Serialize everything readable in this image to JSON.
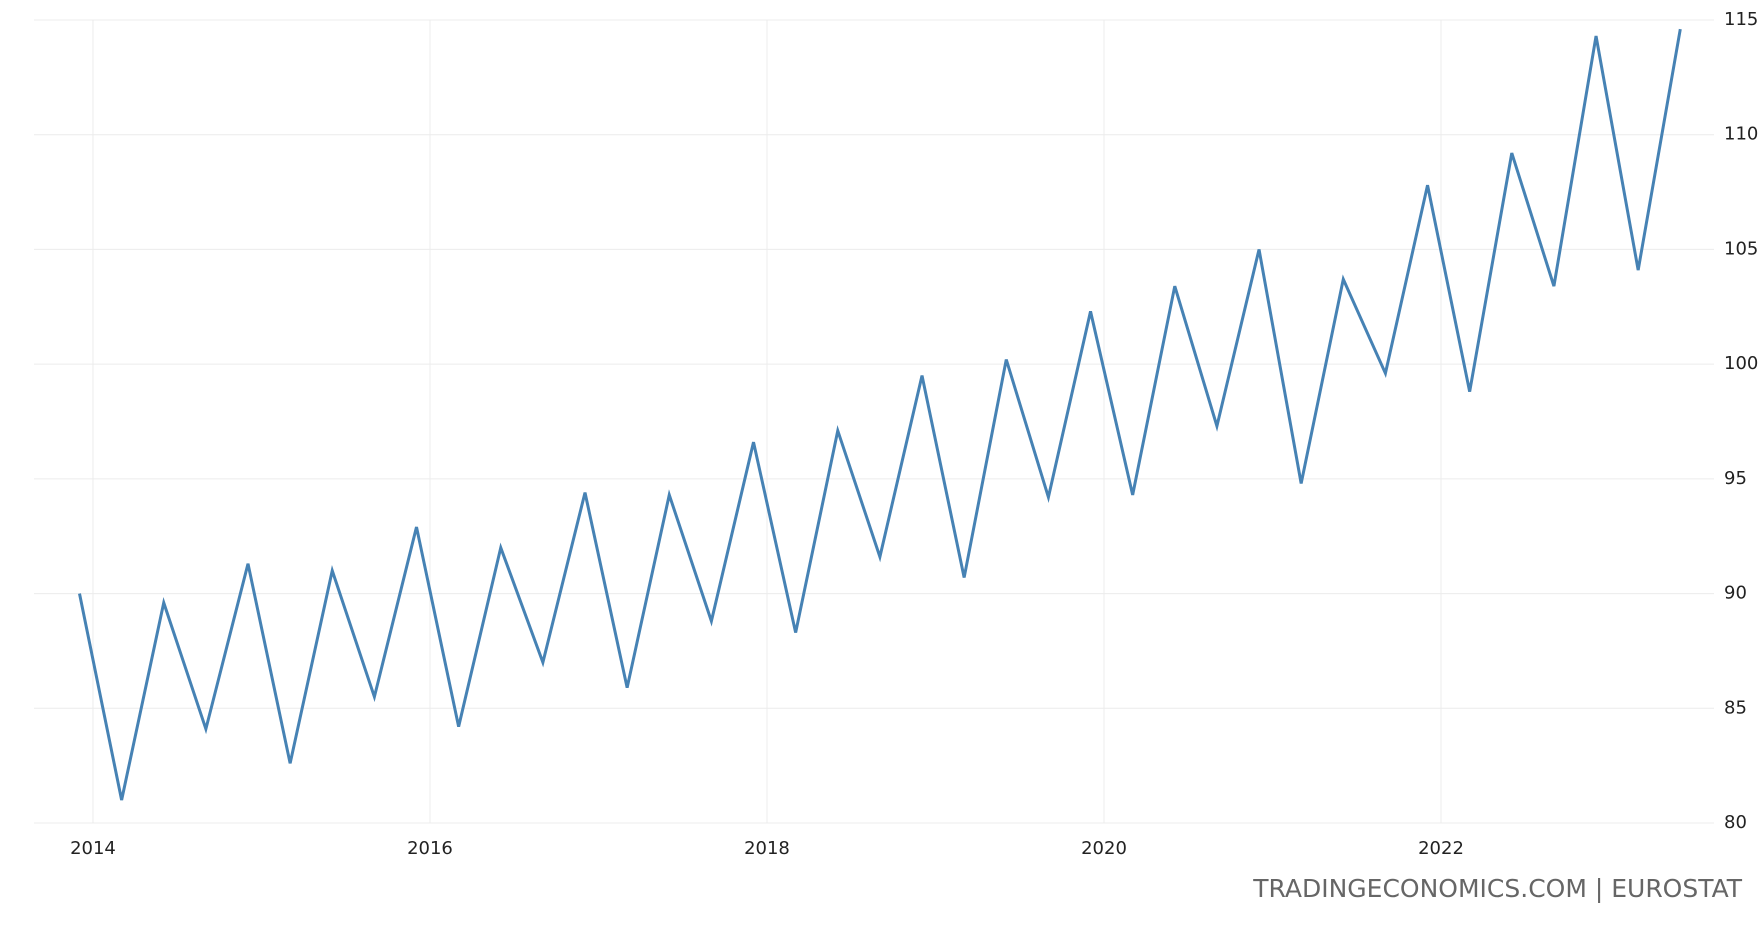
{
  "chart_data": {
    "type": "line",
    "source": "TRADINGECONOMICS.COM | EUROSTAT",
    "x": [
      2013.92,
      2014.17,
      2014.42,
      2014.67,
      2014.92,
      2015.17,
      2015.42,
      2015.67,
      2015.92,
      2016.17,
      2016.42,
      2016.67,
      2016.92,
      2017.17,
      2017.42,
      2017.67,
      2017.92,
      2018.17,
      2018.42,
      2018.67,
      2018.92,
      2019.17,
      2019.42,
      2019.67,
      2019.92,
      2020.17,
      2020.42,
      2020.67,
      2020.92,
      2021.17,
      2021.42,
      2021.67,
      2021.92,
      2022.17,
      2022.42,
      2022.67,
      2022.92,
      2023.17,
      2023.42
    ],
    "series": [
      {
        "color": "#4682b4",
        "values": [
          90,
          81,
          89.6,
          84.1,
          91.3,
          82.6,
          91,
          85.5,
          92.9,
          84.2,
          92,
          87,
          94.4,
          85.9,
          94.3,
          88.8,
          96.6,
          88.3,
          97.1,
          91.6,
          99.5,
          90.7,
          100.2,
          94.2,
          102.3,
          94.3,
          103.4,
          97.3,
          105,
          94.8,
          103.7,
          99.6,
          107.8,
          98.8,
          109.2,
          103.4,
          114.3,
          104.1,
          114.6
        ]
      }
    ],
    "xlim": [
      2013.65,
      2023.62
    ],
    "xticks": [
      2014,
      2016,
      2018,
      2020,
      2022
    ],
    "ylim": [
      80,
      115
    ],
    "yticks": [
      80,
      85,
      90,
      95,
      100,
      105,
      110,
      115
    ],
    "grid": true
  }
}
